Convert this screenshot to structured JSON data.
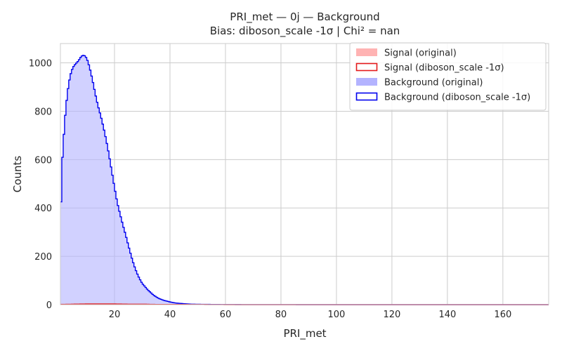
{
  "chart_data": {
    "type": "histogram",
    "title": "PRI_met — 0j — Background",
    "subtitle": "Bias: diboson_scale -1σ | Chi² = nan",
    "xlabel": "PRI_met",
    "ylabel": "Counts",
    "xlim": [
      0.5,
      176.5
    ],
    "ylim": [
      0,
      1080
    ],
    "xticks": [
      20,
      40,
      60,
      80,
      100,
      120,
      140,
      160
    ],
    "xtick_labels": [
      "20",
      "40",
      "60",
      "80",
      "100",
      "120",
      "140",
      "160"
    ],
    "yticks": [
      0,
      200,
      400,
      600,
      800,
      1000
    ],
    "ytick_labels": [
      "0",
      "200",
      "400",
      "600",
      "800",
      "1000"
    ],
    "grid": true,
    "legend_position": "top-right",
    "legend": [
      {
        "label": "Signal (original)",
        "style": "filled",
        "color": "#ffb3b3"
      },
      {
        "label": "Signal (diboson_scale -1σ)",
        "style": "outline",
        "color": "#e41a1c"
      },
      {
        "label": "Background (original)",
        "style": "filled",
        "color": "#b3b3ff"
      },
      {
        "label": "Background (diboson_scale -1σ)",
        "style": "outline",
        "color": "#0000ee"
      }
    ],
    "colors": {
      "background_fill": "#b3b3ff",
      "background_line": "#0000ee",
      "signal_fill": "#ffb3b3",
      "signal_line": "#e41a1c",
      "grid": "#cccccc"
    },
    "series": [
      {
        "name": "Background (original)",
        "x": [
          0.5,
          1,
          2,
          3,
          4,
          5,
          6,
          7,
          8,
          9,
          10,
          11,
          12,
          13,
          14,
          15,
          16,
          17,
          18,
          19,
          20,
          21,
          22,
          23,
          24,
          25,
          26,
          27,
          28,
          29,
          30,
          32,
          34,
          36,
          38,
          40,
          42,
          44,
          46,
          48,
          50,
          55,
          60,
          70,
          80,
          90,
          100,
          120,
          140,
          160,
          176.5
        ],
        "y": [
          290,
          560,
          740,
          860,
          940,
          990,
          1015,
          1025,
          1030,
          1020,
          1000,
          970,
          935,
          890,
          840,
          790,
          730,
          670,
          610,
          550,
          490,
          430,
          380,
          330,
          285,
          240,
          200,
          165,
          135,
          110,
          88,
          60,
          40,
          26,
          17,
          11,
          7,
          5,
          3,
          2,
          1.5,
          1,
          0.5,
          0.2,
          0.1,
          0,
          0,
          0,
          0,
          0,
          0
        ]
      },
      {
        "name": "Background (diboson_scale -1σ)",
        "x": [
          0.5,
          1,
          2,
          3,
          4,
          5,
          6,
          7,
          8,
          9,
          10,
          11,
          12,
          13,
          14,
          15,
          16,
          17,
          18,
          19,
          20,
          21,
          22,
          23,
          24,
          25,
          26,
          27,
          28,
          29,
          30,
          32,
          34,
          36,
          38,
          40,
          42,
          44,
          46,
          48,
          50,
          55,
          60,
          70,
          80,
          90,
          100,
          120,
          140,
          160,
          176.5
        ],
        "y": [
          290,
          560,
          740,
          860,
          940,
          990,
          1015,
          1025,
          1030,
          1020,
          1000,
          970,
          935,
          890,
          840,
          790,
          730,
          670,
          610,
          550,
          490,
          430,
          380,
          330,
          285,
          240,
          200,
          165,
          135,
          110,
          88,
          60,
          40,
          26,
          17,
          11,
          7,
          5,
          3,
          2,
          1.5,
          1,
          0.5,
          0.2,
          0.1,
          0,
          0,
          0,
          0,
          0,
          0
        ]
      },
      {
        "name": "Signal (original)",
        "x": [
          0.5,
          5,
          10,
          15,
          20,
          25,
          30,
          35,
          40,
          50,
          60,
          176.5
        ],
        "y": [
          1,
          2,
          3,
          3,
          3,
          2,
          2,
          1,
          1,
          0.5,
          0,
          0
        ]
      },
      {
        "name": "Signal (diboson_scale -1σ)",
        "x": [
          0.5,
          5,
          10,
          15,
          20,
          25,
          30,
          35,
          40,
          50,
          60,
          176.5
        ],
        "y": [
          1,
          2,
          3,
          3,
          3,
          2,
          2,
          1,
          1,
          0.5,
          0,
          0
        ]
      }
    ]
  }
}
